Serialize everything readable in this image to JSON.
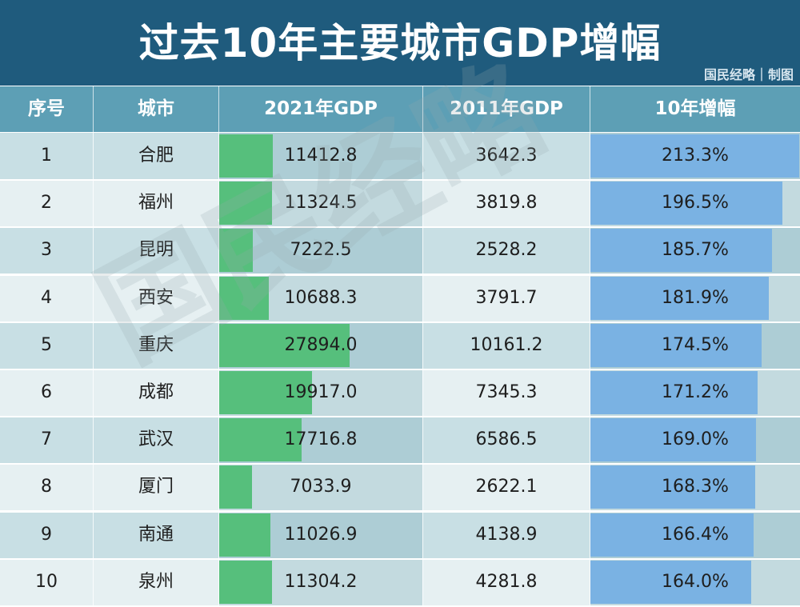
{
  "title": "过去10年主要城市GDP增幅",
  "credit": "国民经略｜制图",
  "watermark": "国民经略",
  "colors": {
    "header_bg": "#1f5b7d",
    "column_header_bg": "#5d9fb5",
    "gdp_bar": "#56bf7c",
    "growth_bar": "#7ab2e3"
  },
  "headers": [
    "序号",
    "城市",
    "2021年GDP",
    "2011年GDP",
    "10年增幅"
  ],
  "chart_data": {
    "type": "table",
    "title": "过去10年主要城市GDP增幅",
    "columns": [
      "序号",
      "城市",
      "2021年GDP",
      "2011年GDP",
      "10年增幅"
    ],
    "rows": [
      {
        "rank": "1",
        "city": "合肥",
        "gdp2021": "11412.8",
        "gdp2011": "3642.3",
        "growth": "213.3%",
        "gdp2021_value": 11412.8,
        "growth_value": 213.3
      },
      {
        "rank": "2",
        "city": "福州",
        "gdp2021": "11324.5",
        "gdp2011": "3819.8",
        "growth": "196.5%",
        "gdp2021_value": 11324.5,
        "growth_value": 196.5
      },
      {
        "rank": "3",
        "city": "昆明",
        "gdp2021": "7222.5",
        "gdp2011": "2528.2",
        "growth": "185.7%",
        "gdp2021_value": 7222.5,
        "growth_value": 185.7
      },
      {
        "rank": "4",
        "city": "西安",
        "gdp2021": "10688.3",
        "gdp2011": "3791.7",
        "growth": "181.9%",
        "gdp2021_value": 10688.3,
        "growth_value": 181.9
      },
      {
        "rank": "5",
        "city": "重庆",
        "gdp2021": "27894.0",
        "gdp2011": "10161.2",
        "growth": "174.5%",
        "gdp2021_value": 27894.0,
        "growth_value": 174.5
      },
      {
        "rank": "6",
        "city": "成都",
        "gdp2021": "19917.0",
        "gdp2011": "7345.3",
        "growth": "171.2%",
        "gdp2021_value": 19917.0,
        "growth_value": 171.2
      },
      {
        "rank": "7",
        "city": "武汉",
        "gdp2021": "17716.8",
        "gdp2011": "6586.5",
        "growth": "169.0%",
        "gdp2021_value": 17716.8,
        "growth_value": 169.0
      },
      {
        "rank": "8",
        "city": "厦门",
        "gdp2021": "7033.9",
        "gdp2011": "2622.1",
        "growth": "168.3%",
        "gdp2021_value": 7033.9,
        "growth_value": 168.3
      },
      {
        "rank": "9",
        "city": "南通",
        "gdp2021": "11026.9",
        "gdp2011": "4138.9",
        "growth": "166.4%",
        "gdp2021_value": 11026.9,
        "growth_value": 166.4
      },
      {
        "rank": "10",
        "city": "泉州",
        "gdp2021": "11304.2",
        "gdp2011": "4281.8",
        "growth": "164.0%",
        "gdp2021_value": 11304.2,
        "growth_value": 164.0
      }
    ],
    "gdp2021_bar_max": 27894.0,
    "growth_bar_max": 213.3
  }
}
